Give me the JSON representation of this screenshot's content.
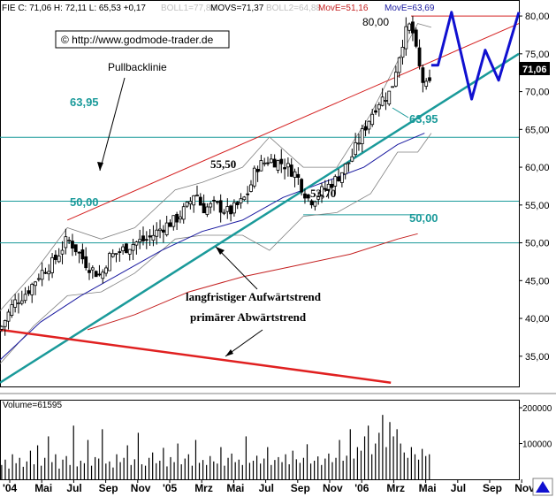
{
  "header": {
    "symbol": "FIE C: 71,06 H: 72,11 L: 65,53 +0,17",
    "boll1": "BOLL1=77,88",
    "movs": "MOVS=71,37",
    "boll2": "BOLL2=64,88",
    "move1": "MovE=51,16",
    "move2": "MovE=63,69"
  },
  "copyright": "© http://www.godmode-trader.de",
  "price_label": "71,06",
  "volume_label": "Volume=61595",
  "annotations": {
    "pullback": "Pullbacklinie",
    "longterm": "langfristiger Aufwärtstrend",
    "primary": "primärer Abwärtstrend",
    "lvl_6395_left": "63,95",
    "lvl_6395_right": "63,95",
    "lvl_5000_left": "50,00",
    "lvl_5000_right": "50,00",
    "lvl_5550": "55,50",
    "lvl_5370": "53,70",
    "lvl_8000": "80,00"
  },
  "colors": {
    "support": "#1a9a9a",
    "pullback": "#d42020",
    "downtrend": "#e02020",
    "ma_blue": "#1a1aa0",
    "ma_red": "#c42020",
    "boll": "#808080",
    "projection": "#1010d0",
    "candle": "#000000"
  },
  "chart_data": [
    {
      "type": "candlestick",
      "title": "",
      "x_ticks": [
        "'04",
        "Mai",
        "Jul",
        "Sep",
        "Nov",
        "'05",
        "Mrz",
        "Mai",
        "Jul",
        "Sep",
        "Nov",
        "'06",
        "Mrz",
        "Mai",
        "Jul",
        "Sep",
        "Nov"
      ],
      "y_ticks": [
        35,
        40,
        45,
        50,
        55,
        60,
        65,
        70,
        75,
        80
      ],
      "ylim": [
        31,
        82
      ],
      "horizontal_levels": [
        63.95,
        55.5,
        53.7,
        50.0
      ],
      "close_path": [
        [
          0,
          38.5
        ],
        [
          4,
          42.0
        ],
        [
          8,
          43.5
        ],
        [
          12,
          46.0
        ],
        [
          16,
          47.5
        ],
        [
          20,
          50.5
        ],
        [
          22,
          49.5
        ],
        [
          26,
          47.0
        ],
        [
          30,
          45.5
        ],
        [
          32,
          48.0
        ],
        [
          36,
          49.0
        ],
        [
          40,
          50.0
        ],
        [
          44,
          50.5
        ],
        [
          48,
          52.0
        ],
        [
          52,
          53.0
        ],
        [
          56,
          55.0
        ],
        [
          58,
          57.0
        ],
        [
          60,
          54.5
        ],
        [
          64,
          55.0
        ],
        [
          68,
          54.0
        ],
        [
          72,
          55.5
        ],
        [
          74,
          57.0
        ],
        [
          76,
          60.0
        ],
        [
          80,
          61.0
        ],
        [
          84,
          60.5
        ],
        [
          88,
          59.0
        ],
        [
          90,
          57.0
        ],
        [
          92,
          55.5
        ],
        [
          96,
          57.0
        ],
        [
          100,
          58.5
        ],
        [
          104,
          61.0
        ],
        [
          108,
          65.0
        ],
        [
          112,
          68.5
        ],
        [
          116,
          70.0
        ],
        [
          118,
          74.0
        ],
        [
          120,
          77.5
        ],
        [
          122,
          79.0
        ],
        [
          124,
          74.0
        ],
        [
          126,
          70.5
        ],
        [
          128,
          71.06
        ]
      ],
      "projection": [
        [
          128,
          73.5
        ],
        [
          130,
          73.5
        ],
        [
          134,
          80.5
        ],
        [
          140,
          69.0
        ],
        [
          144,
          75.5
        ],
        [
          148,
          71.5
        ],
        [
          154,
          80.5
        ]
      ],
      "trendlines": {
        "long_term_uptrend": [
          [
            0,
            31.5
          ],
          [
            154,
            75.0
          ]
        ],
        "pullback_line": [
          [
            20,
            53.0
          ],
          [
            154,
            79.0
          ]
        ],
        "primary_downtrend": [
          [
            0,
            38.5
          ],
          [
            116,
            31.5
          ]
        ],
        "resistance_80": [
          [
            122,
            80.0
          ],
          [
            154,
            80.0
          ]
        ]
      },
      "moving_averages": [
        {
          "name": "MovE=51,16",
          "values": [
            [
              26,
              38.5
            ],
            [
              40,
              40.5
            ],
            [
              56,
              43.5
            ],
            [
              72,
              45.5
            ],
            [
              88,
              47.0
            ],
            [
              104,
              48.5
            ],
            [
              118,
              50.5
            ],
            [
              124,
              51.2
            ]
          ]
        },
        {
          "name": "MovE=63,69",
          "values": [
            [
              0,
              34.5
            ],
            [
              12,
              39.5
            ],
            [
              24,
              43.0
            ],
            [
              36,
              46.0
            ],
            [
              48,
              49.0
            ],
            [
              60,
              51.5
            ],
            [
              72,
              53.0
            ],
            [
              84,
              56.0
            ],
            [
              96,
              58.0
            ],
            [
              108,
              60.0
            ],
            [
              118,
              63.0
            ],
            [
              126,
              64.5
            ]
          ]
        }
      ],
      "bollinger": {
        "upper": [
          [
            0,
            41.0
          ],
          [
            10,
            46.0
          ],
          [
            20,
            52.0
          ],
          [
            30,
            50.5
          ],
          [
            40,
            52.0
          ],
          [
            52,
            57.0
          ],
          [
            60,
            58.0
          ],
          [
            72,
            60.0
          ],
          [
            80,
            64.0
          ],
          [
            90,
            60.0
          ],
          [
            100,
            60.0
          ],
          [
            110,
            67.0
          ],
          [
            118,
            74.0
          ],
          [
            124,
            79.0
          ],
          [
            128,
            78.5
          ]
        ],
        "lower": [
          [
            0,
            34.0
          ],
          [
            10,
            39.0
          ],
          [
            20,
            43.0
          ],
          [
            30,
            43.5
          ],
          [
            40,
            46.0
          ],
          [
            52,
            50.5
          ],
          [
            60,
            51.0
          ],
          [
            72,
            51.0
          ],
          [
            80,
            49.0
          ],
          [
            90,
            53.5
          ],
          [
            100,
            54.0
          ],
          [
            110,
            56.5
          ],
          [
            118,
            62.0
          ],
          [
            124,
            62.0
          ],
          [
            128,
            64.5
          ]
        ]
      }
    },
    {
      "type": "bar",
      "title": "",
      "ylabel": "",
      "y_ticks": [
        100000,
        200000
      ],
      "y_tick_labels": [
        "100000",
        "200000"
      ],
      "ylim": [
        0,
        215000
      ],
      "values": [
        40000,
        55000,
        30000,
        70000,
        45000,
        60000,
        35000,
        50000,
        80000,
        42000,
        95000,
        38000,
        60000,
        120000,
        48000,
        70000,
        30000,
        55000,
        65000,
        40000,
        150000,
        36000,
        52000,
        45000,
        110000,
        38000,
        62000,
        58000,
        140000,
        44000,
        50000,
        33000,
        70000,
        48000,
        60000,
        95000,
        40000,
        56000,
        130000,
        42000,
        38000,
        60000,
        75000,
        45000,
        52000,
        88000,
        36000,
        62000,
        48000,
        100000,
        42000,
        58000,
        70000,
        38000,
        110000,
        46000,
        54000,
        40000,
        65000,
        50000,
        44000,
        90000,
        38000,
        60000,
        72000,
        48000,
        55000,
        40000,
        120000,
        46000,
        52000,
        66000,
        44000,
        58000,
        90000,
        40000,
        54000,
        62000,
        48000,
        70000,
        42000,
        80000,
        56000,
        46000,
        60000,
        98000,
        44000,
        52000,
        64000,
        40000,
        58000,
        72000,
        48000,
        60000,
        110000,
        52000,
        66000,
        140000,
        58000,
        90000,
        80000,
        120000,
        150000,
        70000,
        100000,
        130000,
        180000,
        90000,
        160000,
        120000,
        140000,
        100000,
        75000,
        60000,
        90000,
        70000,
        55000,
        85000,
        65000,
        70000
      ]
    }
  ]
}
